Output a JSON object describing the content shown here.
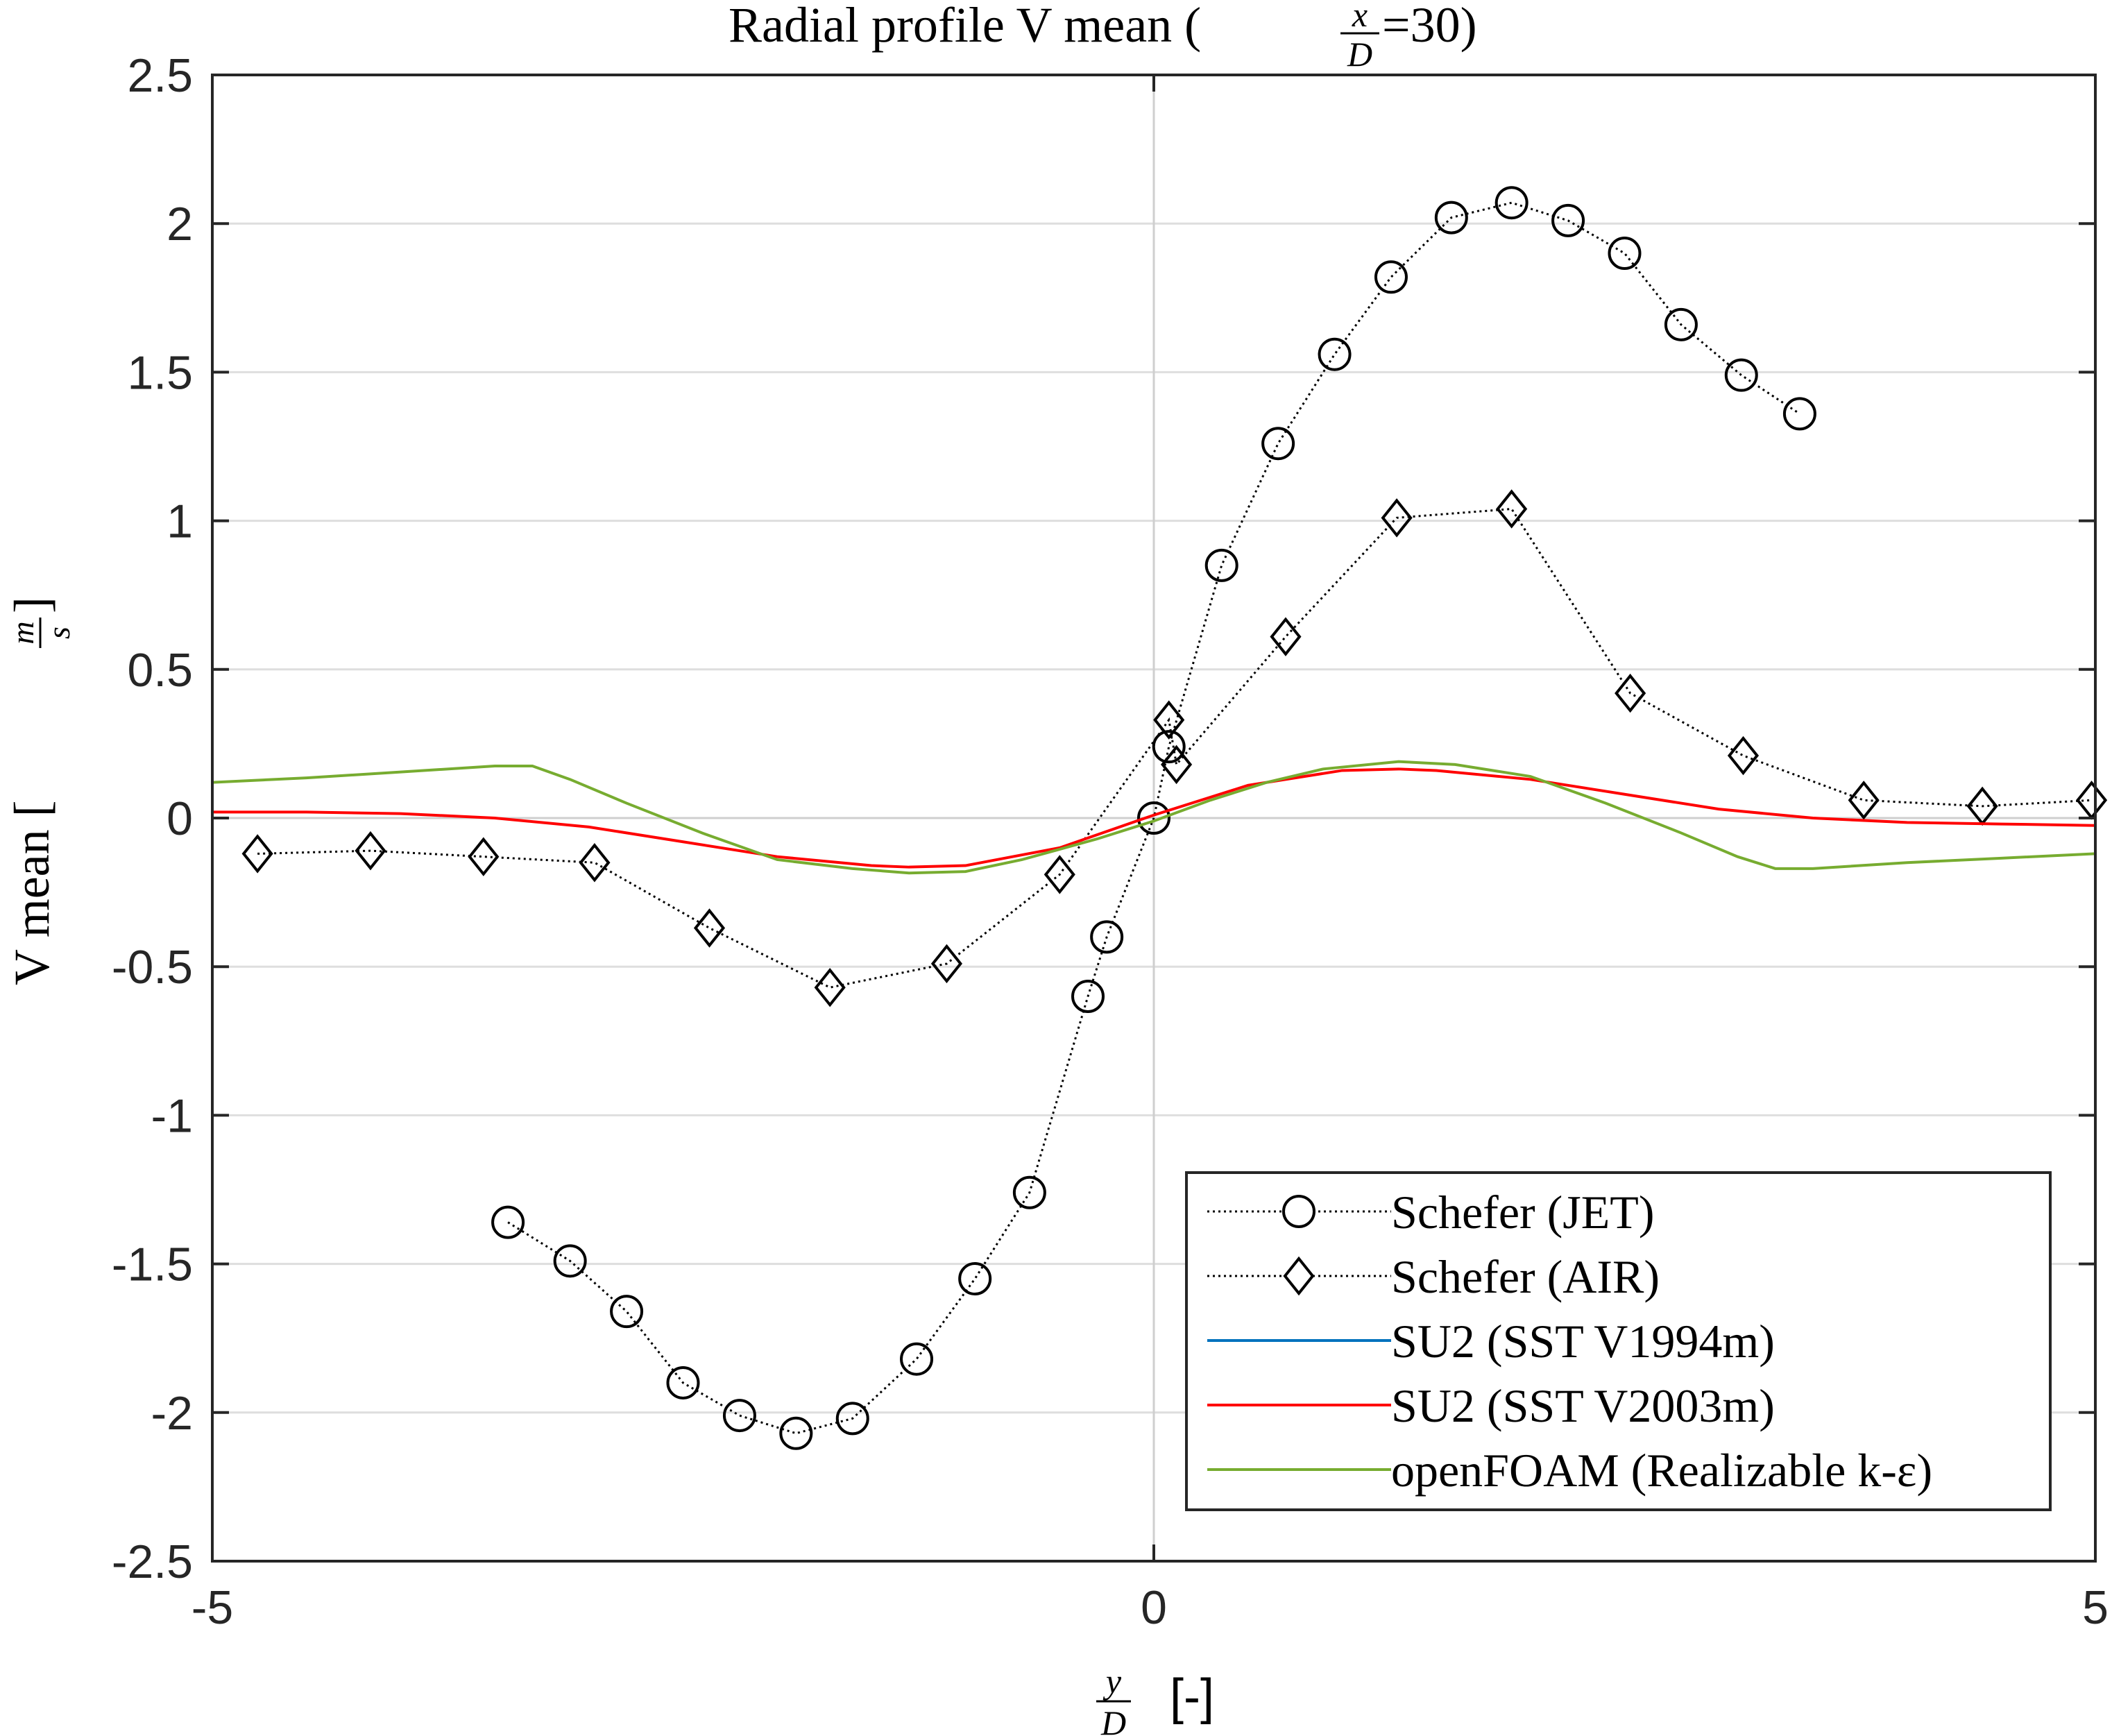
{
  "chart_data": {
    "type": "line",
    "title": {
      "main": "Radial profile V mean (",
      "frac_num": "x",
      "frac_den": "D",
      "suffix": "=30)"
    },
    "xlabel": {
      "frac_num": "y",
      "frac_den": "D",
      "unit": "[-]"
    },
    "ylabel": {
      "text": "V mean [",
      "frac_num": "m",
      "frac_den": "s",
      "close": "]"
    },
    "xlim": [
      -5,
      5
    ],
    "ylim": [
      -2.5,
      2.5
    ],
    "xticks": [
      -5,
      0,
      5
    ],
    "xtick_labels": [
      "-5",
      "0",
      "5"
    ],
    "yticks": [
      -2.5,
      -2,
      -1.5,
      -1,
      -0.5,
      0,
      0.5,
      1,
      1.5,
      2,
      2.5
    ],
    "ytick_labels": [
      "-2.5",
      "-2",
      "-1.5",
      "-1",
      "-0.5",
      "0",
      "0.5",
      "1",
      "1.5",
      "2",
      "2.5"
    ],
    "grid": true,
    "legend_position": "bottom-right",
    "series": [
      {
        "name": "Schefer (JET)",
        "color": "#000000",
        "style": "dotted",
        "marker": "circle",
        "x": [
          -3.43,
          -3.1,
          -2.8,
          -2.5,
          -2.2,
          -1.9,
          -1.6,
          -1.26,
          -0.95,
          -0.66,
          -0.35,
          -0.25,
          0.0,
          0.08,
          0.36,
          0.66,
          0.96,
          1.26,
          1.58,
          1.9,
          2.2,
          2.5,
          2.8,
          3.12,
          3.43
        ],
        "y": [
          -1.36,
          -1.49,
          -1.66,
          -1.9,
          -2.01,
          -2.07,
          -2.02,
          -1.82,
          -1.55,
          -1.26,
          -0.6,
          -0.4,
          0.0,
          0.24,
          0.85,
          1.26,
          1.56,
          1.82,
          2.02,
          2.07,
          2.01,
          1.9,
          1.66,
          1.49,
          1.36
        ]
      },
      {
        "name": "Schefer (AIR)",
        "color": "#000000",
        "style": "dotted",
        "marker": "diamond",
        "x": [
          -4.76,
          -4.16,
          -3.56,
          -2.97,
          -2.36,
          -1.72,
          -1.1,
          -0.5,
          0.08,
          0.12,
          0.7,
          1.29,
          1.9,
          2.53,
          3.13,
          3.77,
          4.4,
          4.98
        ],
        "y": [
          -0.12,
          -0.11,
          -0.13,
          -0.15,
          -0.37,
          -0.57,
          -0.49,
          -0.19,
          0.33,
          0.18,
          0.61,
          1.01,
          1.04,
          0.42,
          0.21,
          0.06,
          0.04,
          0.06
        ]
      },
      {
        "name": "SU2 (SST V1994m)",
        "color": "#0072BD",
        "style": "solid",
        "marker": "none",
        "x": [],
        "y": []
      },
      {
        "name": "SU2 (SST V2003m)",
        "color": "#FF0000",
        "style": "solid",
        "marker": "none",
        "x": [
          -5,
          -4.5,
          -4,
          -3.5,
          -3,
          -2.5,
          -2,
          -1.5,
          -1.3,
          -1,
          -0.5,
          0,
          0.5,
          1,
          1.3,
          1.5,
          2,
          2.5,
          3,
          3.5,
          4,
          4.5,
          5
        ],
        "y": [
          0.02,
          0.02,
          0.015,
          0.0,
          -0.03,
          -0.08,
          -0.13,
          -0.16,
          -0.165,
          -0.16,
          -0.1,
          0.01,
          0.11,
          0.16,
          0.165,
          0.16,
          0.13,
          0.08,
          0.03,
          0.0,
          -0.015,
          -0.02,
          -0.025
        ]
      },
      {
        "name": "openFOAM (Realizable k-ε)",
        "color": "#77AC30",
        "style": "solid",
        "marker": "none",
        "x": [
          -5,
          -4.5,
          -4,
          -3.5,
          -3.3,
          -3.1,
          -2.8,
          -2.4,
          -2,
          -1.6,
          -1.3,
          -1,
          -0.7,
          -0.3,
          0,
          0.3,
          0.6,
          0.9,
          1.3,
          1.6,
          2,
          2.4,
          2.8,
          3.1,
          3.3,
          3.5,
          4,
          4.5,
          5
        ],
        "y": [
          0.12,
          0.135,
          0.155,
          0.175,
          0.175,
          0.13,
          0.05,
          -0.05,
          -0.14,
          -0.17,
          -0.185,
          -0.18,
          -0.14,
          -0.07,
          -0.01,
          0.06,
          0.12,
          0.165,
          0.19,
          0.18,
          0.14,
          0.05,
          -0.05,
          -0.13,
          -0.17,
          -0.17,
          -0.15,
          -0.135,
          -0.12
        ]
      }
    ]
  }
}
